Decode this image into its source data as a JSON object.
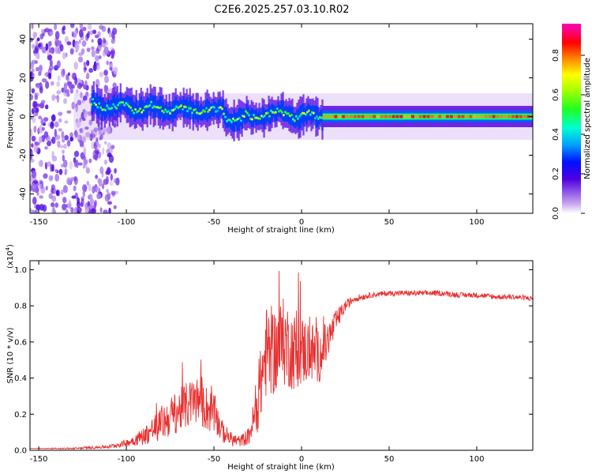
{
  "title": "C2E6.2025.257.03.10.R02",
  "chart_data": [
    {
      "type": "heatmap",
      "xlabel": "Height of straight line (km)",
      "ylabel": "Frequency (Hz)",
      "xlim": [
        -155,
        132
      ],
      "ylim": [
        -50,
        48
      ],
      "xticks": [
        -150,
        -100,
        -50,
        0,
        50,
        100
      ],
      "yticks": [
        -40,
        -20,
        0,
        20,
        40
      ],
      "colorbar": {
        "label": "Normalized spectral amplitude",
        "range": [
          0,
          0.96
        ],
        "ticks": [
          "0.0",
          "0.2",
          "0.4",
          "0.6",
          "0.8"
        ],
        "colormap": "rainbow"
      },
      "regions": [
        {
          "name": "scattered noise",
          "x": [
            -155,
            -105
          ],
          "frequency": [
            -50,
            48
          ],
          "amplitude": 0.1
        },
        {
          "name": "wandering tone",
          "x": [
            -120,
            12
          ],
          "frequency_center": [
            6,
            0
          ],
          "amplitude": 0.45
        },
        {
          "name": "steady tone",
          "x": [
            12,
            132
          ],
          "frequency_center": 0,
          "amplitude": 0.9
        }
      ]
    },
    {
      "type": "line",
      "xlabel": "Height of straight line (km)",
      "ylabel": "SNR (10 * v/v)",
      "ylabel_multiplier": "(x10",
      "ylabel_exponent": "4",
      "xlim": [
        -155,
        132
      ],
      "ylim": [
        0,
        1.05
      ],
      "xticks": [
        -150,
        -100,
        -50,
        0,
        50,
        100
      ],
      "yticks": [
        "0.0",
        "0.2",
        "0.4",
        "0.6",
        "0.8",
        "1.0"
      ],
      "series": [
        {
          "color": "#e83030",
          "x": [
            -155,
            -130,
            -110,
            -100,
            -90,
            -80,
            -70,
            -60,
            -50,
            -45,
            -40,
            -35,
            -30,
            -25,
            -22,
            -20,
            -15,
            -10,
            -5,
            0,
            5,
            10,
            15,
            20,
            25,
            30,
            40,
            50,
            60,
            70,
            80,
            90,
            100,
            110,
            120,
            132
          ],
          "y": [
            0.01,
            0.01,
            0.02,
            0.04,
            0.08,
            0.15,
            0.22,
            0.28,
            0.2,
            0.1,
            0.06,
            0.05,
            0.08,
            0.25,
            0.45,
            0.55,
            0.55,
            0.6,
            0.55,
            0.55,
            0.55,
            0.52,
            0.6,
            0.72,
            0.8,
            0.84,
            0.86,
            0.87,
            0.87,
            0.87,
            0.87,
            0.86,
            0.86,
            0.85,
            0.85,
            0.84
          ],
          "noise": [
            0.0,
            0.005,
            0.01,
            0.02,
            0.05,
            0.1,
            0.12,
            0.14,
            0.12,
            0.06,
            0.04,
            0.03,
            0.05,
            0.15,
            0.25,
            0.25,
            0.25,
            0.25,
            0.22,
            0.2,
            0.18,
            0.15,
            0.12,
            0.06,
            0.03,
            0.02,
            0.015,
            0.015,
            0.015,
            0.015,
            0.015,
            0.015,
            0.015,
            0.015,
            0.015,
            0.015
          ]
        }
      ]
    }
  ]
}
